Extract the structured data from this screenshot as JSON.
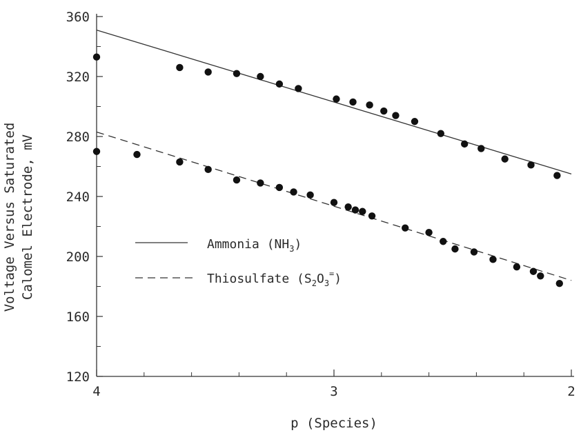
{
  "chart_data": {
    "type": "scatter",
    "xlabel": "p (Species)",
    "ylabel_line1": "Voltage Versus Saturated",
    "ylabel_line2": "Calomel Electrode, mV",
    "xlim": [
      4,
      2
    ],
    "ylim": [
      120,
      360
    ],
    "x_ticks": [
      4,
      3,
      2
    ],
    "y_ticks": [
      120,
      160,
      200,
      240,
      280,
      320,
      360
    ],
    "grid": false,
    "legend_position": "center-left",
    "series": [
      {
        "name": "Ammonia",
        "name_formula": "(NH3)",
        "line_style": "solid",
        "fit": [
          [
            4.0,
            351
          ],
          [
            2.0,
            255
          ]
        ],
        "points": [
          [
            4.0,
            333
          ],
          [
            3.65,
            326
          ],
          [
            3.53,
            323
          ],
          [
            3.41,
            322
          ],
          [
            3.31,
            320
          ],
          [
            3.23,
            315
          ],
          [
            3.15,
            312
          ],
          [
            2.99,
            305
          ],
          [
            2.92,
            303
          ],
          [
            2.85,
            301
          ],
          [
            2.79,
            297
          ],
          [
            2.74,
            294
          ],
          [
            2.66,
            290
          ],
          [
            2.55,
            282
          ],
          [
            2.45,
            275
          ],
          [
            2.38,
            272
          ],
          [
            2.28,
            265
          ],
          [
            2.17,
            261
          ],
          [
            2.06,
            254
          ]
        ]
      },
      {
        "name": "Thiosulfate",
        "name_formula": "(S2O3=)",
        "line_style": "dashed",
        "fit": [
          [
            4.0,
            283
          ],
          [
            2.0,
            184
          ]
        ],
        "points": [
          [
            4.0,
            270
          ],
          [
            3.83,
            268
          ],
          [
            3.65,
            263
          ],
          [
            3.53,
            258
          ],
          [
            3.41,
            251
          ],
          [
            3.31,
            249
          ],
          [
            3.23,
            246
          ],
          [
            3.17,
            243
          ],
          [
            3.1,
            241
          ],
          [
            3.0,
            236
          ],
          [
            2.94,
            233
          ],
          [
            2.91,
            231
          ],
          [
            2.88,
            230
          ],
          [
            2.84,
            227
          ],
          [
            2.7,
            219
          ],
          [
            2.6,
            216
          ],
          [
            2.54,
            210
          ],
          [
            2.49,
            205
          ],
          [
            2.41,
            203
          ],
          [
            2.33,
            198
          ],
          [
            2.23,
            193
          ],
          [
            2.16,
            190
          ],
          [
            2.13,
            187
          ],
          [
            2.05,
            182
          ]
        ]
      }
    ]
  }
}
